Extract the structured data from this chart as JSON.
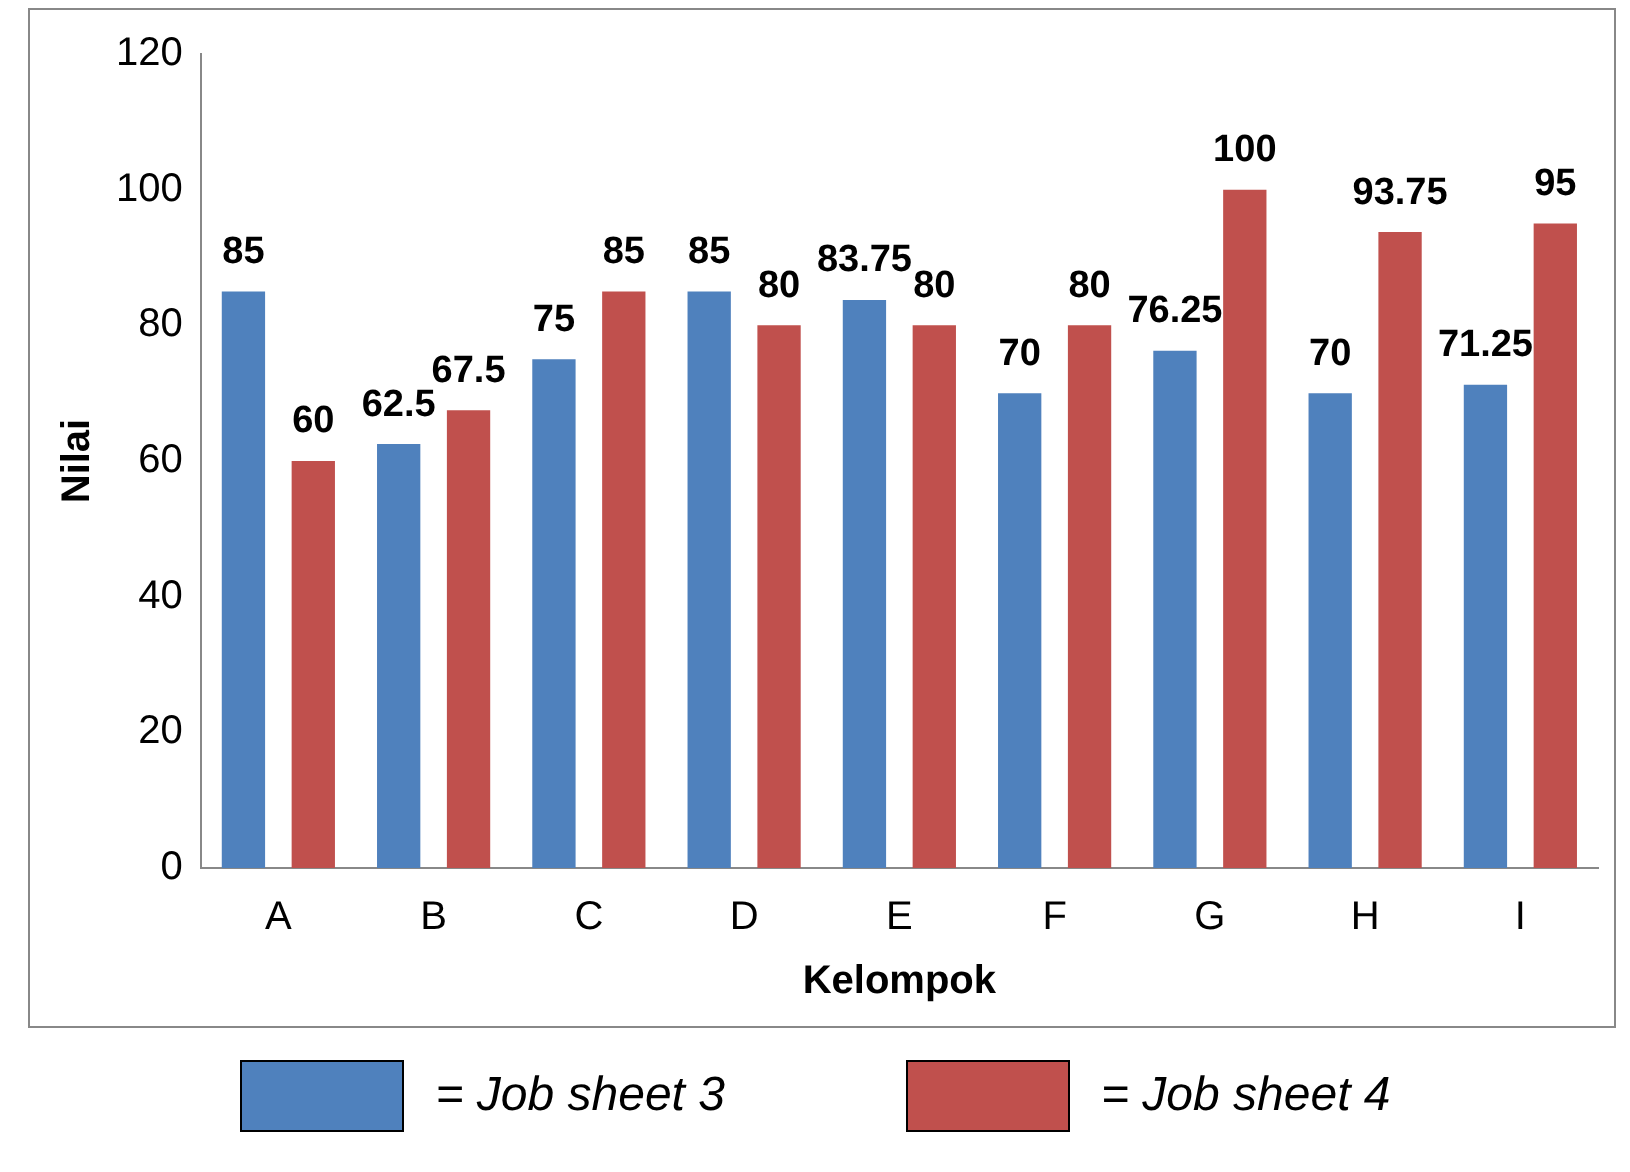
{
  "chart_data": {
    "type": "bar",
    "xlabel": "Kelompok",
    "ylabel": "Nilai",
    "categories": [
      "A",
      "B",
      "C",
      "D",
      "E",
      "F",
      "G",
      "H",
      "I"
    ],
    "series": [
      {
        "name": "= Job sheet 3",
        "color": "#4f81bd",
        "values": [
          85,
          62.5,
          75,
          85,
          83.75,
          70,
          76.25,
          70,
          71.25
        ]
      },
      {
        "name": "= Job sheet 4",
        "color": "#c0504d",
        "values": [
          60,
          67.5,
          85,
          80,
          80,
          80,
          100,
          93.75,
          95
        ]
      }
    ],
    "ylim": [
      0,
      120
    ],
    "yticks": [
      0,
      20,
      40,
      60,
      80,
      100,
      120
    ],
    "data_labels": true,
    "grid": false,
    "legend": "bottom"
  }
}
